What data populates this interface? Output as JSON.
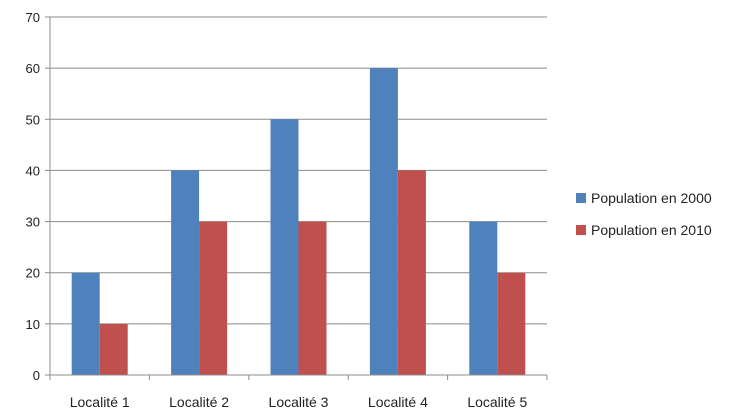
{
  "chart_data": {
    "type": "bar",
    "title": "",
    "xlabel": "",
    "ylabel": "",
    "categories": [
      "Localité 1",
      "Localité 2",
      "Localité 3",
      "Localité 4",
      "Localité 5"
    ],
    "series": [
      {
        "name": "Population en 2000",
        "values": [
          20,
          40,
          50,
          60,
          30
        ]
      },
      {
        "name": "Population en 2010",
        "values": [
          10,
          30,
          30,
          40,
          20
        ]
      }
    ],
    "ylim": [
      0,
      70
    ],
    "yticks": [
      0,
      10,
      20,
      30,
      40,
      50,
      60,
      70
    ],
    "grid": true,
    "legend_position": "right"
  },
  "colors": {
    "series": [
      "#4f81bd",
      "#c0504d"
    ],
    "grid": "#8c8c8c",
    "axis": "#8c8c8c"
  }
}
